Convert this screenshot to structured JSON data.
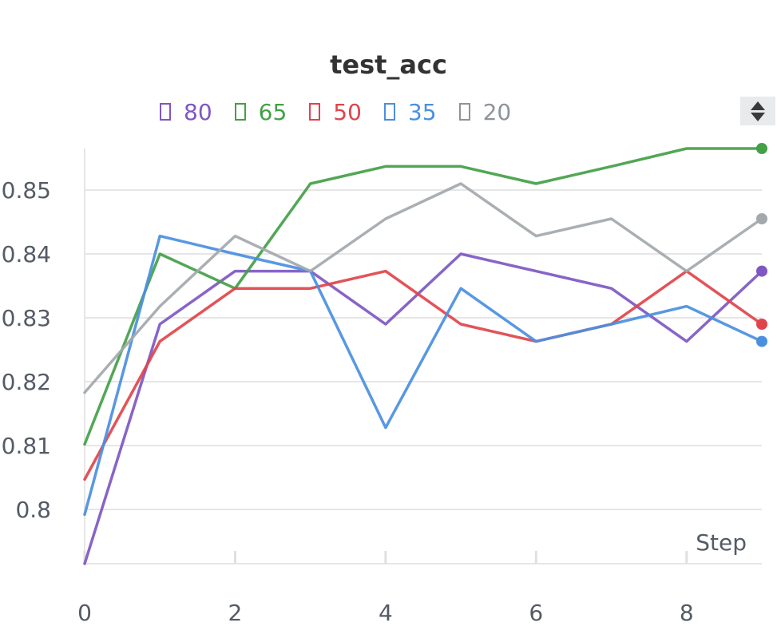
{
  "chart_data": {
    "type": "line",
    "title": "test_acc",
    "xlabel": "Step",
    "ylabel": "",
    "x": [
      0,
      1,
      2,
      3,
      4,
      5,
      6,
      7,
      8,
      9
    ],
    "xlim": [
      0,
      9
    ],
    "ylim": [
      0.7915,
      0.8565
    ],
    "xticks": [
      0,
      2,
      4,
      6,
      8
    ],
    "yticks": [
      0.8,
      0.81,
      0.82,
      0.83,
      0.84,
      0.85
    ],
    "ytick_labels": [
      "0.8",
      "0.81",
      "0.82",
      "0.83",
      "0.84",
      "0.85"
    ],
    "grid": true,
    "legend_position": "top",
    "series": [
      {
        "name": "80",
        "color": "#7e57c2",
        "values": [
          0.7915,
          0.829,
          0.8373,
          0.8373,
          0.829,
          0.84,
          0.8373,
          0.8346,
          0.8263,
          0.8373
        ]
      },
      {
        "name": "65",
        "color": "#43a047",
        "values": [
          0.8102,
          0.84,
          0.8346,
          0.851,
          0.8537,
          0.8537,
          0.851,
          0.8537,
          0.8565,
          0.8565
        ]
      },
      {
        "name": "50",
        "color": "#e0444a",
        "values": [
          0.8047,
          0.8263,
          0.8346,
          0.8346,
          0.8373,
          0.829,
          0.8263,
          0.829,
          0.8373,
          0.829
        ]
      },
      {
        "name": "35",
        "color": "#4a8fe0",
        "values": [
          0.7992,
          0.8428,
          0.84,
          0.8373,
          0.8128,
          0.8346,
          0.8263,
          0.829,
          0.8318,
          0.8263
        ]
      },
      {
        "name": "20",
        "color": "#a3a8ad",
        "values": [
          0.8183,
          0.8318,
          0.8428,
          0.8373,
          0.8455,
          0.851,
          0.8428,
          0.8455,
          0.8373,
          0.8455
        ]
      }
    ]
  }
}
